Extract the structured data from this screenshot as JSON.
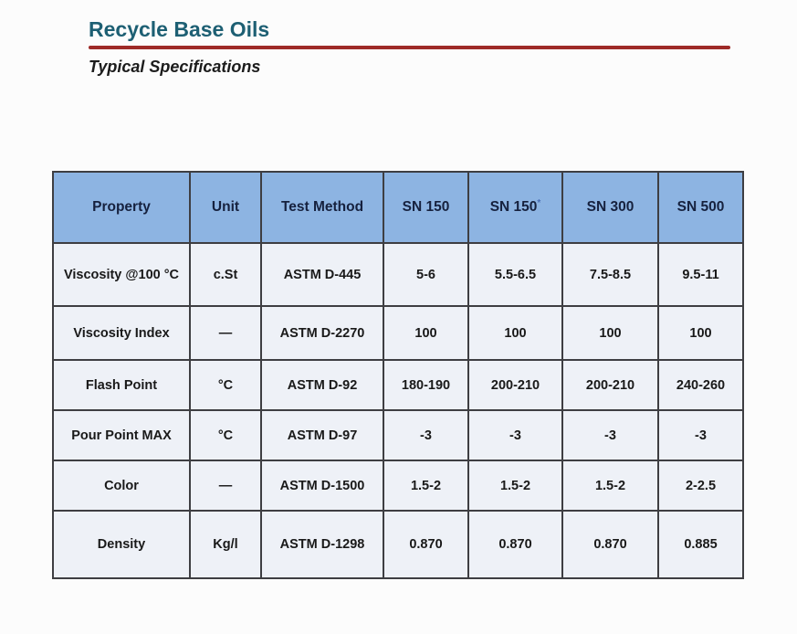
{
  "header": {
    "title": "Recycle Base Oils",
    "subtitle": "Typical Specifications"
  },
  "table": {
    "columns": [
      "Property",
      "Unit",
      "Test Method",
      "SN 150",
      "SN 150*",
      "SN 300",
      "SN 500"
    ],
    "rows": [
      [
        "Viscosity @100 °C",
        "c.St",
        "ASTM D-445",
        "5-6",
        "5.5-6.5",
        "7.5-8.5",
        "9.5-11"
      ],
      [
        "Viscosity Index",
        "—",
        "ASTM D-2270",
        "100",
        "100",
        "100",
        "100"
      ],
      [
        "Flash Point",
        "°C",
        "ASTM D-92",
        "180-190",
        "200-210",
        "200-210",
        "240-260"
      ],
      [
        "Pour Point MAX",
        "°C",
        "ASTM D-97",
        "-3",
        "-3",
        "-3",
        "-3"
      ],
      [
        "Color",
        "—",
        "ASTM D-1500",
        "1.5-2",
        "1.5-2",
        "1.5-2",
        "2-2.5"
      ],
      [
        "Density",
        "Kg/l",
        "ASTM D-1298",
        "0.870",
        "0.870",
        "0.870",
        "0.885"
      ]
    ]
  },
  "colors": {
    "title": "#1d5f73",
    "rule": "#9e2b28",
    "header_bg": "#8db4e2",
    "header_text": "#16213e",
    "row_bg": "#eef1f7",
    "border": "#3e3e42",
    "body_text": "#191919",
    "asterisk": "#4a6fb5"
  }
}
